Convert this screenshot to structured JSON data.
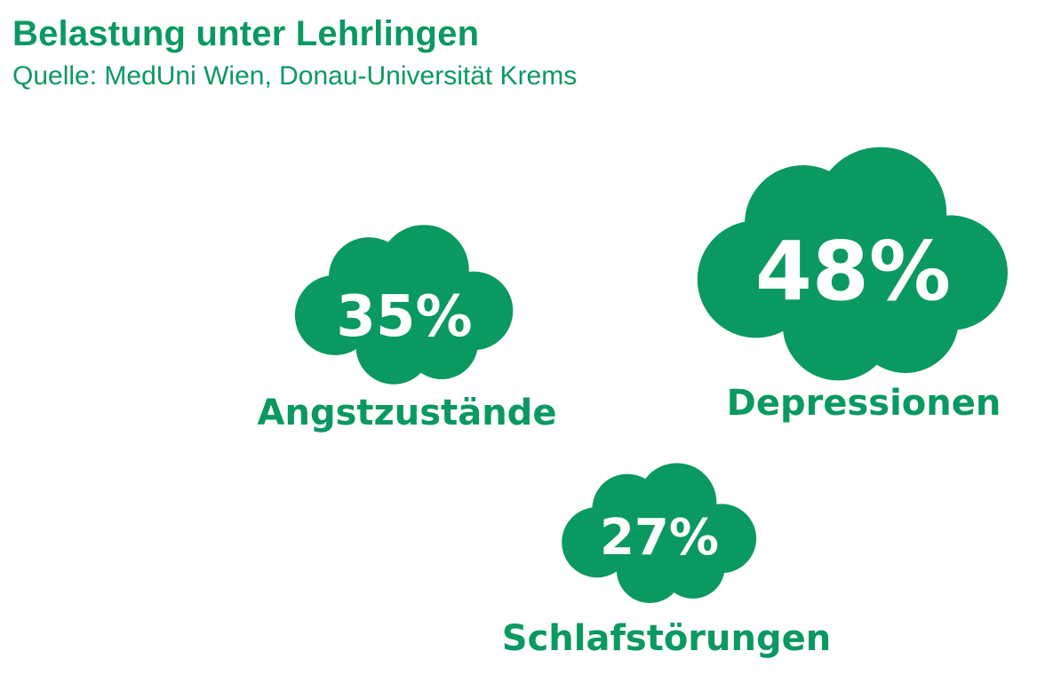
{
  "colors": {
    "accent": "#0a9960",
    "on_accent": "#ffffff"
  },
  "chart_data": {
    "type": "other",
    "title": "Belastung unter Lehrlingen",
    "subtitle": "Quelle: MedUni Wien, Donau-Universität Krems",
    "unit": "%",
    "categories": [
      "Angstzustände",
      "Depressionen",
      "Schlafstörungen"
    ],
    "values": [
      35,
      48,
      27
    ],
    "value_labels": [
      "35%",
      "48%",
      "27%"
    ]
  }
}
